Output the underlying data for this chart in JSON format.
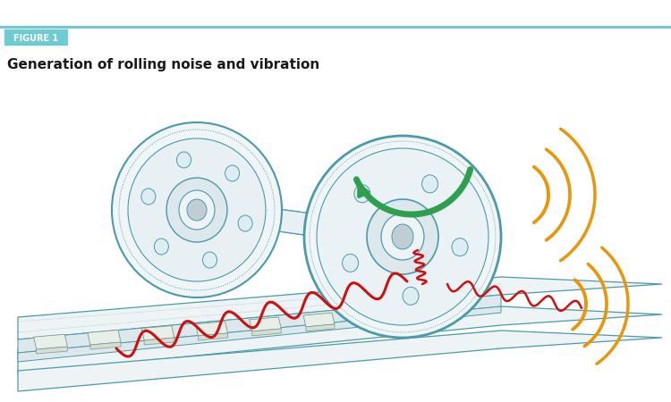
{
  "figure_label": "FIGURE 1",
  "figure_label_bg": "#6ECBD1",
  "figure_label_color": "#ffffff",
  "title": "Generation of rolling noise and vibration",
  "title_color": "#1a1a1a",
  "title_fontsize": 11,
  "header_line_color": "#6ECBD1",
  "background_color": "#ffffff",
  "line_color": "#4a9aaa",
  "line_color2": "#5aaaaa",
  "arrow_color": "#2e9e4f",
  "wave_red": "#cc1111",
  "wave_orange": "#e8960a",
  "fig_width": 7.5,
  "fig_height": 4.5
}
